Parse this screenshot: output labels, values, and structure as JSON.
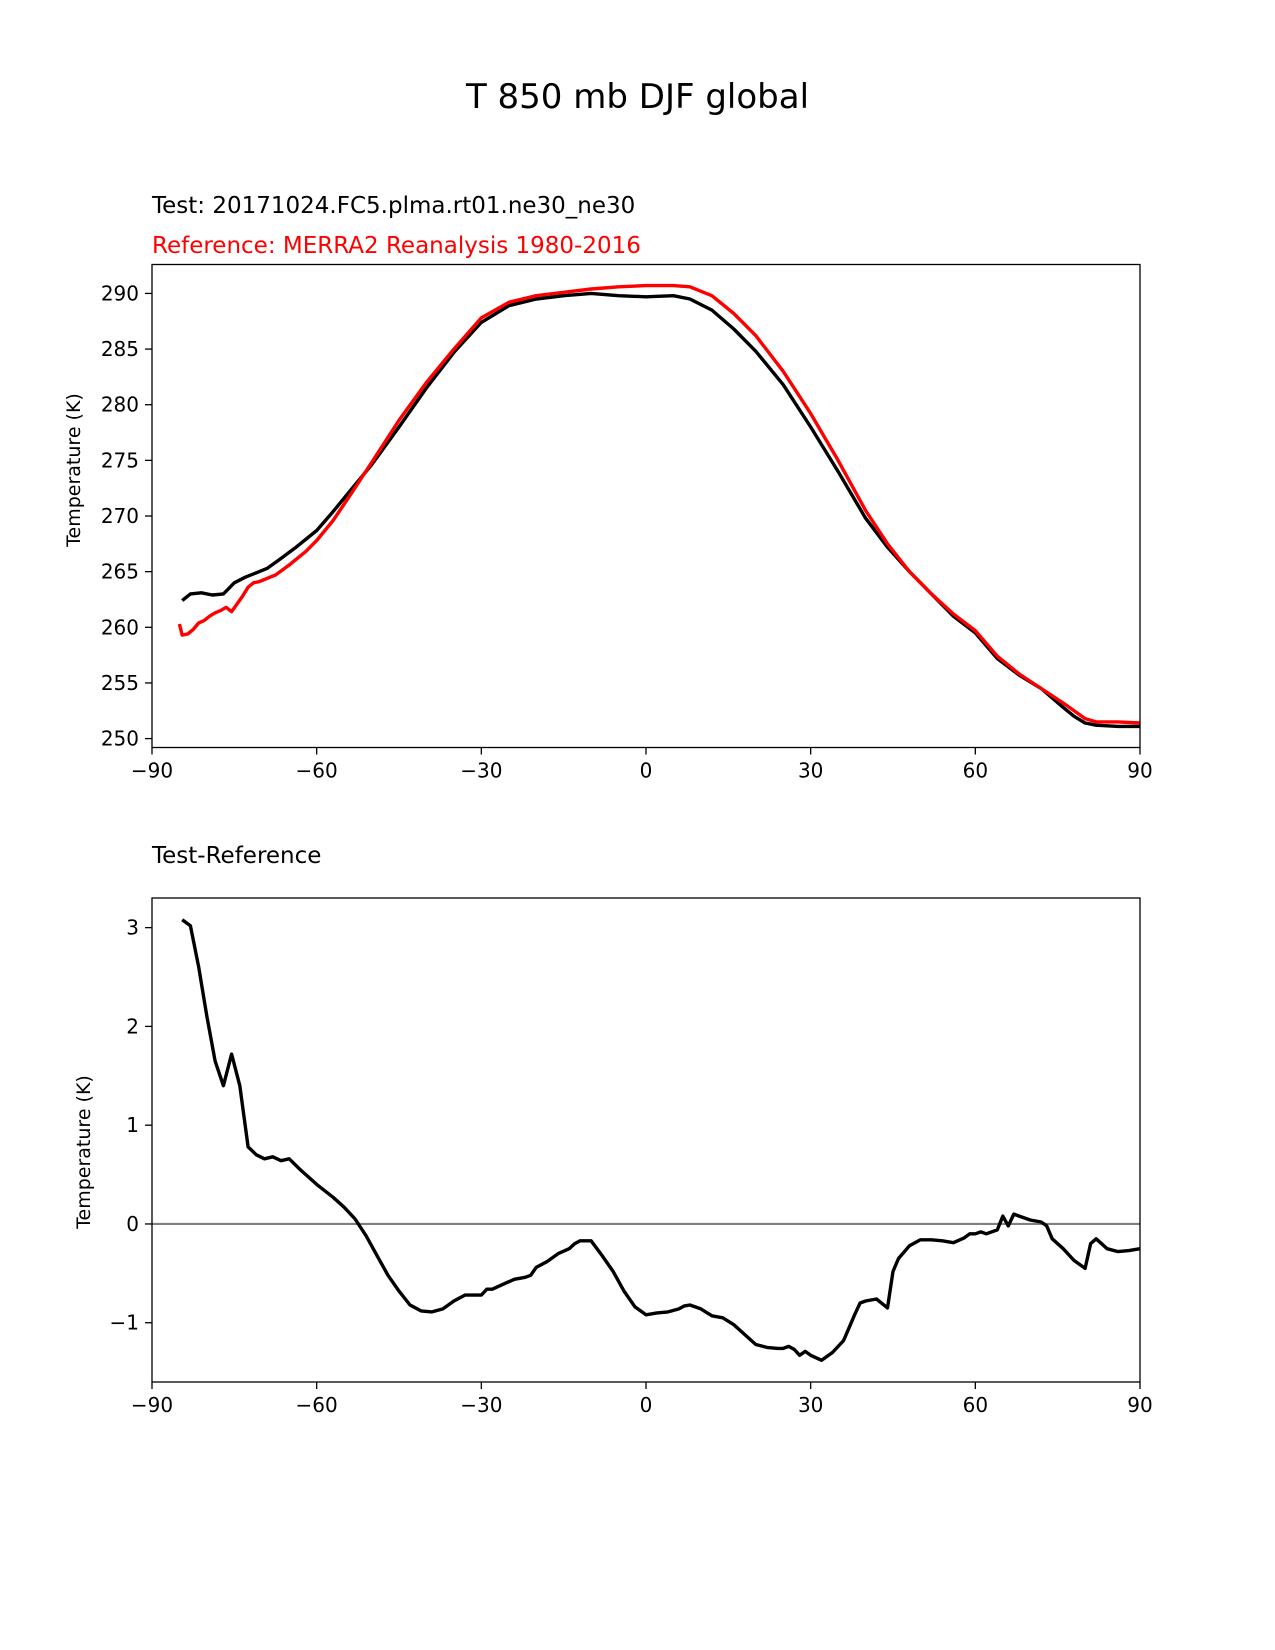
{
  "figure": {
    "title": "T 850 mb DJF global"
  },
  "chart_data": [
    {
      "type": "line",
      "title": "",
      "test_label": "Test: 20171024.FC5.plma.rt01.ne30_ne30",
      "reference_label": "Reference: MERRA2 Reanalysis 1980-2016",
      "xlabel": "",
      "ylabel": "Temperature (K)",
      "xlim": [
        -90,
        90
      ],
      "ylim": [
        249.2,
        292.6
      ],
      "xticks": [
        -90,
        -60,
        -30,
        0,
        30,
        60,
        90
      ],
      "xtick_labels": [
        "−90",
        "−60",
        "−30",
        "0",
        "30",
        "60",
        "90"
      ],
      "yticks": [
        250,
        255,
        260,
        265,
        270,
        275,
        280,
        285,
        290
      ],
      "ytick_labels": [
        "250",
        "255",
        "260",
        "265",
        "270",
        "275",
        "280",
        "285",
        "290"
      ],
      "grid": false,
      "series": [
        {
          "name": "Test",
          "color": "#000000",
          "x": [
            -84.5,
            -83,
            -81,
            -79,
            -77,
            -75,
            -73,
            -71,
            -69,
            -67,
            -64,
            -60,
            -57,
            -54,
            -50,
            -45,
            -40,
            -35,
            -30,
            -25,
            -20,
            -15,
            -10,
            -5,
            0,
            5,
            8,
            12,
            16,
            20,
            25,
            30,
            35,
            40,
            44,
            48,
            52,
            56,
            60,
            64,
            68,
            72,
            76,
            78,
            80,
            82,
            86,
            90
          ],
          "y": [
            262.4,
            263.0,
            263.1,
            262.9,
            263.0,
            264.0,
            264.5,
            264.9,
            265.3,
            266.0,
            267.1,
            268.7,
            270.4,
            272.2,
            274.6,
            278.0,
            281.5,
            284.7,
            287.4,
            288.9,
            289.5,
            289.8,
            290.0,
            289.8,
            289.7,
            289.8,
            289.5,
            288.5,
            286.8,
            284.8,
            281.8,
            278.0,
            274.0,
            269.8,
            267.2,
            265.0,
            263.0,
            261.0,
            259.5,
            257.2,
            255.7,
            254.5,
            252.8,
            252.0,
            251.4,
            251.2,
            251.1,
            251.1
          ]
        },
        {
          "name": "Reference",
          "color": "#ff0000",
          "x": [
            -85,
            -84.5,
            -83.5,
            -82.5,
            -81.5,
            -80.5,
            -79.5,
            -78.5,
            -77.5,
            -76.5,
            -75.5,
            -74.5,
            -73.5,
            -72.5,
            -71.5,
            -70.5,
            -69.5,
            -68.5,
            -67.5,
            -65,
            -62,
            -60,
            -57,
            -54,
            -50,
            -45,
            -40,
            -35,
            -30,
            -25,
            -20,
            -15,
            -10,
            -5,
            0,
            5,
            8,
            12,
            16,
            20,
            25,
            30,
            35,
            40,
            44,
            48,
            52,
            56,
            60,
            64,
            68,
            72,
            76,
            78,
            80,
            82,
            86,
            90
          ],
          "y": [
            260.3,
            259.3,
            259.4,
            259.8,
            260.4,
            260.6,
            261.0,
            261.3,
            261.5,
            261.8,
            261.4,
            262.1,
            262.8,
            263.6,
            264.0,
            264.1,
            264.3,
            264.5,
            264.7,
            265.6,
            266.8,
            267.8,
            269.6,
            271.8,
            274.8,
            278.6,
            282.0,
            285.0,
            287.8,
            289.2,
            289.8,
            290.1,
            290.4,
            290.6,
            290.7,
            290.7,
            290.6,
            289.8,
            288.2,
            286.2,
            283.0,
            279.2,
            275.0,
            270.5,
            267.5,
            265.0,
            263.0,
            261.2,
            259.7,
            257.4,
            255.8,
            254.5,
            253.2,
            252.5,
            251.8,
            251.5,
            251.5,
            251.4
          ]
        }
      ]
    },
    {
      "type": "line",
      "title": "Test-Reference",
      "xlabel": "",
      "ylabel": "Temperature (K)",
      "xlim": [
        -90,
        90
      ],
      "ylim": [
        -1.6,
        3.3
      ],
      "xticks": [
        -90,
        -60,
        -30,
        0,
        30,
        60,
        90
      ],
      "xtick_labels": [
        "−90",
        "−60",
        "−30",
        "0",
        "30",
        "60",
        "90"
      ],
      "yticks": [
        -1,
        0,
        1,
        2,
        3
      ],
      "ytick_labels": [
        "−1",
        "0",
        "1",
        "2",
        "3"
      ],
      "grid": false,
      "reference_line": {
        "y": 0,
        "color": "#808080"
      },
      "series": [
        {
          "name": "Test-Reference",
          "color": "#000000",
          "x": [
            -84.5,
            -83,
            -81.5,
            -80,
            -78.5,
            -77,
            -75.5,
            -74,
            -72.5,
            -71,
            -69.5,
            -68,
            -66.5,
            -65,
            -63,
            -60,
            -57,
            -55,
            -53,
            -51,
            -49,
            -47,
            -45,
            -43,
            -41,
            -39,
            -37,
            -35,
            -33,
            -31,
            -30,
            -29,
            -28,
            -26,
            -24,
            -22,
            -21,
            -20,
            -18,
            -16,
            -14,
            -13,
            -12,
            -10,
            -8,
            -6,
            -4,
            -2,
            0,
            2,
            4,
            6,
            7,
            8,
            10,
            12,
            14,
            16,
            18,
            20,
            22,
            24,
            25,
            26,
            27,
            28,
            29,
            30,
            32,
            34,
            36,
            37,
            38,
            39,
            40,
            42,
            44,
            45,
            46,
            48,
            50,
            52,
            54,
            56,
            58,
            59,
            60,
            61,
            62,
            64,
            65,
            66,
            67,
            68,
            70,
            72,
            73,
            74,
            76,
            78,
            80,
            81,
            82,
            83,
            84,
            86,
            88,
            90
          ],
          "y": [
            3.08,
            3.02,
            2.6,
            2.1,
            1.65,
            1.4,
            1.72,
            1.4,
            0.78,
            0.7,
            0.66,
            0.68,
            0.64,
            0.66,
            0.55,
            0.4,
            0.27,
            0.17,
            0.05,
            -0.12,
            -0.32,
            -0.52,
            -0.68,
            -0.82,
            -0.88,
            -0.89,
            -0.86,
            -0.78,
            -0.72,
            -0.72,
            -0.72,
            -0.66,
            -0.66,
            -0.61,
            -0.56,
            -0.54,
            -0.52,
            -0.44,
            -0.38,
            -0.3,
            -0.25,
            -0.2,
            -0.17,
            -0.17,
            -0.32,
            -0.48,
            -0.68,
            -0.84,
            -0.92,
            -0.9,
            -0.89,
            -0.86,
            -0.83,
            -0.82,
            -0.86,
            -0.93,
            -0.95,
            -1.02,
            -1.12,
            -1.22,
            -1.25,
            -1.26,
            -1.26,
            -1.24,
            -1.27,
            -1.33,
            -1.29,
            -1.33,
            -1.38,
            -1.3,
            -1.18,
            -1.05,
            -0.92,
            -0.8,
            -0.78,
            -0.76,
            -0.85,
            -0.48,
            -0.35,
            -0.22,
            -0.16,
            -0.16,
            -0.17,
            -0.19,
            -0.14,
            -0.1,
            -0.1,
            -0.08,
            -0.1,
            -0.06,
            0.08,
            -0.02,
            0.1,
            0.08,
            0.04,
            0.02,
            -0.02,
            -0.15,
            -0.25,
            -0.37,
            -0.45,
            -0.2,
            -0.15,
            -0.2,
            -0.25,
            -0.28,
            -0.27,
            -0.25
          ]
        }
      ]
    }
  ]
}
